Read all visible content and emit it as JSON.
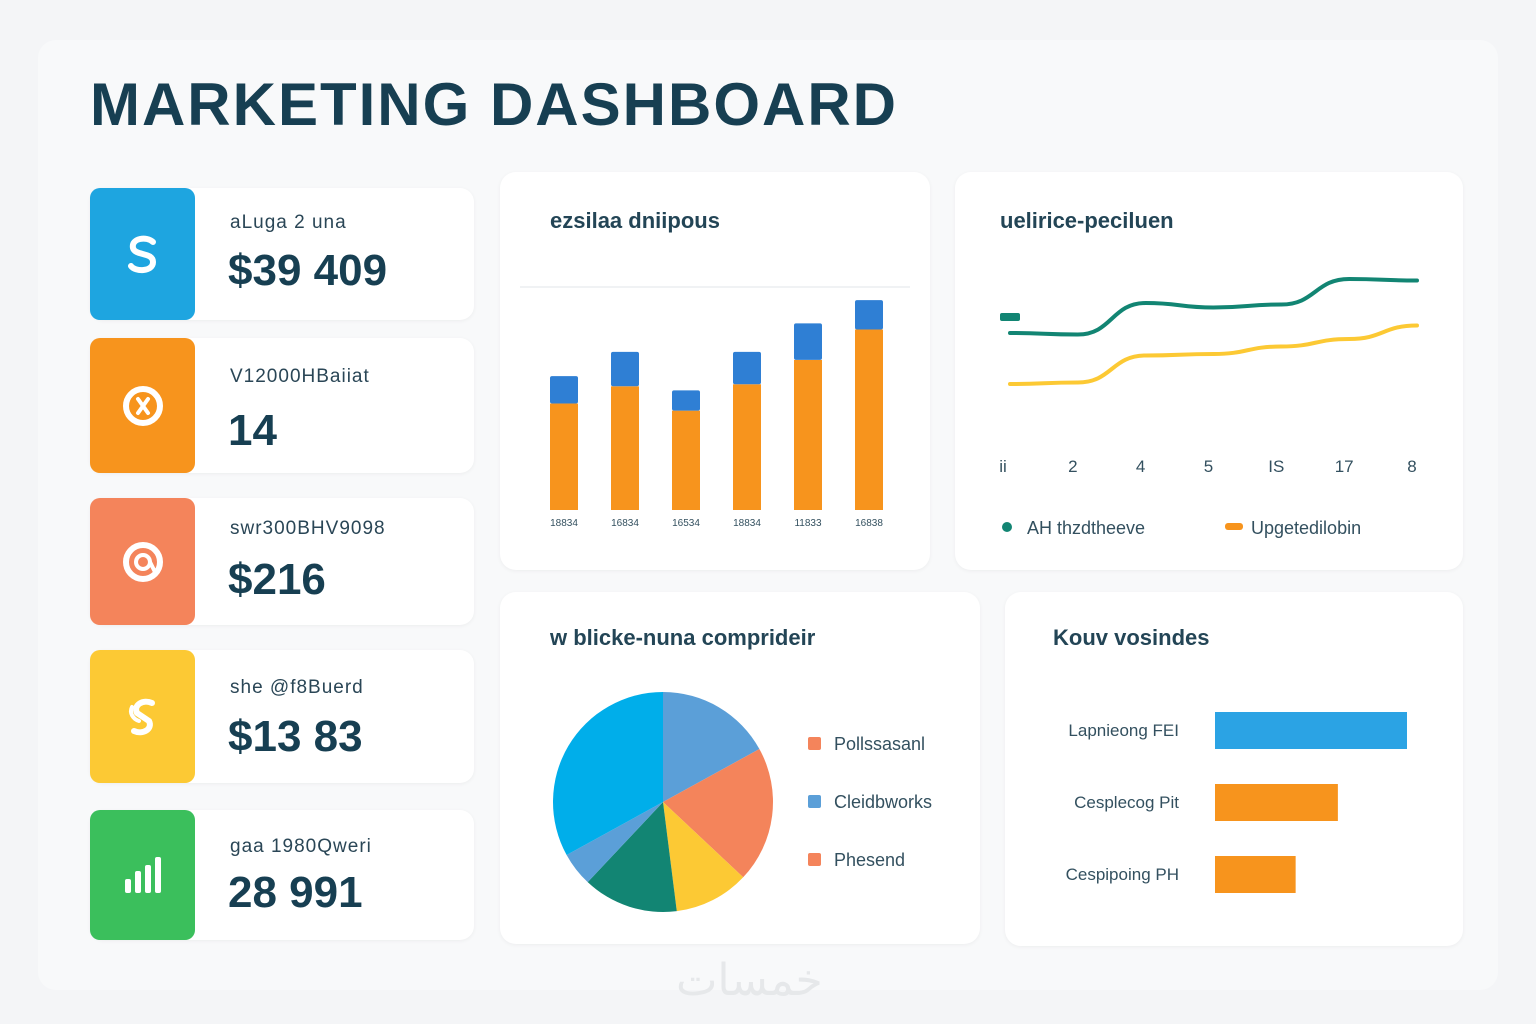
{
  "page": {
    "title": "MARKETING DASHBOARD",
    "watermark": "خمسات"
  },
  "colors": {
    "blue": "#1ea5e0",
    "orange": "#f7941d",
    "coral": "#f4845b",
    "yellow": "#fcc934",
    "green": "#3bbf5c",
    "teal": "#128573",
    "lightblue": "#5b9fd8"
  },
  "kpis": [
    {
      "icon": "dollar-icon",
      "label": "aLuga 2 una",
      "value": "$39 409"
    },
    {
      "icon": "target-icon",
      "label": "V12000HBaiiat",
      "value": "14"
    },
    {
      "icon": "swirl-icon",
      "label": "swr300BHV9098",
      "value": "$216"
    },
    {
      "icon": "dollar-swirl-icon",
      "label": "she @f8Buerd",
      "value": "$13 83"
    },
    {
      "icon": "bars-icon",
      "label": "gaa 1980Qweri",
      "value": "28 991"
    }
  ],
  "bar_card": {
    "title": "ezsilaa dniipous"
  },
  "line_card": {
    "title": "uelirice-peciluen"
  },
  "pie_card": {
    "title": "w blicke-nuna comprideir"
  },
  "hbar_card": {
    "title": "Kouv vosindes"
  },
  "chart_data": [
    {
      "type": "bar",
      "title": "ezsilaa dniipous",
      "categories": [
        "18834",
        "16834",
        "16534",
        "18834",
        "11833",
        "16838"
      ],
      "series": [
        {
          "name": "orange",
          "values": [
            105,
            122,
            98,
            124,
            148,
            178
          ]
        },
        {
          "name": "blue",
          "values": [
            27,
            34,
            20,
            32,
            36,
            29
          ]
        }
      ],
      "ylim": [
        0,
        215
      ]
    },
    {
      "type": "line",
      "title": "uelirice-peciluen",
      "x": [
        "ii",
        "2",
        "4",
        "5",
        "IS",
        "17",
        "8"
      ],
      "series": [
        {
          "name": "AH thzdtheeve",
          "values": [
            56,
            55,
            76,
            73,
            75,
            92,
            91
          ]
        },
        {
          "name": "Upgetedilobin",
          "values": [
            22,
            23,
            41,
            42,
            47,
            52,
            61
          ]
        }
      ],
      "ylim": [
        0,
        100
      ]
    },
    {
      "type": "pie",
      "title": "w blicke-nuna comprideir",
      "legend": [
        "Pollssasanl",
        "Cleidbworks",
        "Phesend"
      ],
      "slices": [
        {
          "color": "#5b9fd8",
          "value": 17
        },
        {
          "color": "#f4845b",
          "value": 20
        },
        {
          "color": "#fcc934",
          "value": 11
        },
        {
          "color": "#128573",
          "value": 14
        },
        {
          "color": "#5b9fd8",
          "value": 5
        },
        {
          "color": "#00aeea",
          "value": 33
        }
      ]
    },
    {
      "type": "bar",
      "orientation": "horizontal",
      "title": "Kouv vosindes",
      "categories": [
        "Lapnieong FEI",
        "Cesplecog Pit",
        "Cespipoing PH"
      ],
      "values": [
        100,
        64,
        42
      ],
      "ylim": [
        0,
        100
      ]
    }
  ]
}
